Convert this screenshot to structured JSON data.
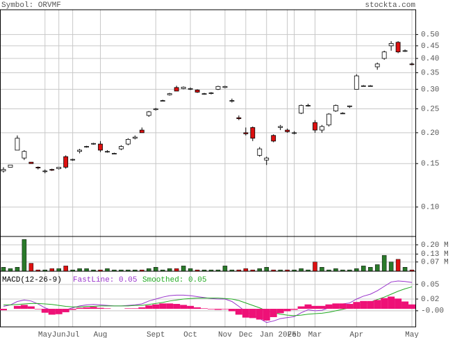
{
  "header": {
    "symbol": "Symbol: ORVMF",
    "site": "stockta.com"
  },
  "chart_data": [
    {
      "type": "candlestick",
      "log_scale": true,
      "grid": true,
      "up_color": "#ffffff",
      "down_color": "#dd1111",
      "ylim": [
        0.076,
        0.63
      ],
      "yticks": [
        {
          "value": 0.5,
          "label": "0.50"
        },
        0.45,
        {
          "value": 0.4,
          "label": "0.40"
        },
        0.35,
        {
          "value": 0.3,
          "label": "0.30"
        },
        0.25,
        {
          "value": 0.2,
          "label": "0.20"
        },
        0.15,
        {
          "value": 0.1,
          "label": "0.10"
        }
      ],
      "open": [
        0.14,
        0.145,
        0.17,
        0.158,
        0.152,
        0.145,
        0.14,
        0.142,
        0.143,
        0.16,
        0.155,
        0.168,
        0.175,
        0.18,
        0.18,
        0.168,
        0.165,
        0.172,
        0.18,
        0.19,
        0.205,
        0.235,
        0.248,
        0.27,
        0.285,
        0.305,
        0.302,
        0.3,
        0.298,
        0.288,
        0.29,
        0.3,
        0.305,
        0.27,
        0.23,
        0.2,
        0.21,
        0.162,
        0.155,
        0.195,
        0.21,
        0.205,
        0.2,
        0.24,
        0.258,
        0.22,
        0.205,
        0.215,
        0.245,
        0.24,
        0.255,
        0.3,
        0.31,
        0.31,
        0.37,
        0.4,
        0.45,
        0.465,
        0.43,
        0.38
      ],
      "high": [
        0.145,
        0.148,
        0.195,
        0.17,
        0.152,
        0.146,
        0.142,
        0.143,
        0.145,
        0.162,
        0.157,
        0.172,
        0.177,
        0.182,
        0.185,
        0.17,
        0.166,
        0.178,
        0.19,
        0.195,
        0.21,
        0.245,
        0.252,
        0.272,
        0.29,
        0.31,
        0.308,
        0.305,
        0.3,
        0.29,
        0.292,
        0.31,
        0.31,
        0.275,
        0.235,
        0.21,
        0.212,
        0.175,
        0.16,
        0.197,
        0.215,
        0.208,
        0.203,
        0.26,
        0.262,
        0.225,
        0.215,
        0.24,
        0.26,
        0.242,
        0.258,
        0.345,
        0.312,
        0.312,
        0.385,
        0.43,
        0.47,
        0.47,
        0.435,
        0.385
      ],
      "low": [
        0.138,
        0.145,
        0.17,
        0.155,
        0.15,
        0.142,
        0.137,
        0.14,
        0.142,
        0.143,
        0.154,
        0.165,
        0.174,
        0.179,
        0.167,
        0.166,
        0.164,
        0.17,
        0.178,
        0.188,
        0.2,
        0.232,
        0.246,
        0.268,
        0.283,
        0.295,
        0.3,
        0.298,
        0.29,
        0.285,
        0.286,
        0.298,
        0.303,
        0.265,
        0.225,
        0.195,
        0.185,
        0.16,
        0.148,
        0.183,
        0.205,
        0.2,
        0.197,
        0.238,
        0.255,
        0.2,
        0.2,
        0.212,
        0.243,
        0.238,
        0.252,
        0.3,
        0.309,
        0.309,
        0.36,
        0.395,
        0.43,
        0.42,
        0.425,
        0.375
      ],
      "close": [
        0.142,
        0.148,
        0.19,
        0.168,
        0.15,
        0.144,
        0.14,
        0.141,
        0.145,
        0.145,
        0.156,
        0.17,
        0.176,
        0.181,
        0.17,
        0.168,
        0.165,
        0.176,
        0.188,
        0.192,
        0.2,
        0.243,
        0.25,
        0.27,
        0.288,
        0.295,
        0.306,
        0.302,
        0.292,
        0.288,
        0.29,
        0.308,
        0.308,
        0.27,
        0.228,
        0.198,
        0.19,
        0.172,
        0.158,
        0.185,
        0.212,
        0.202,
        0.2,
        0.258,
        0.258,
        0.205,
        0.212,
        0.238,
        0.258,
        0.24,
        0.257,
        0.34,
        0.31,
        0.31,
        0.38,
        0.425,
        0.46,
        0.425,
        0.43,
        0.378
      ]
    },
    {
      "type": "bar",
      "grid": true,
      "up_color": "#2a7a2a",
      "down_color": "#dd1111",
      "ylim": [
        0,
        0.263
      ],
      "yticks": [
        {
          "value": 0.2,
          "label": "0.20 M"
        },
        {
          "value": 0.13,
          "label": "0.13 M"
        },
        {
          "value": 0.07,
          "label": "0.07 M"
        }
      ],
      "values": [
        0.03,
        0.02,
        0.03,
        0.24,
        0.06,
        0.01,
        0.01,
        0.02,
        0.02,
        0.04,
        0.01,
        0.02,
        0.02,
        0.01,
        0.01,
        0.02,
        0.01,
        0.01,
        0.01,
        0.01,
        0.01,
        0.02,
        0.03,
        0.01,
        0.02,
        0.02,
        0.04,
        0.02,
        0.01,
        0.01,
        0.01,
        0.01,
        0.04,
        0.01,
        0.01,
        0.02,
        0.01,
        0.02,
        0.03,
        0.01,
        0.01,
        0.01,
        0.01,
        0.02,
        0.01,
        0.07,
        0.03,
        0.01,
        0.02,
        0.01,
        0.01,
        0.02,
        0.04,
        0.03,
        0.05,
        0.12,
        0.07,
        0.09,
        0.03,
        0.01
      ]
    },
    {
      "type": "line",
      "title": "MACD(12-26-9)",
      "grid": true,
      "ylim": [
        -0.037,
        0.077
      ],
      "yticks": [
        {
          "value": 0.05,
          "label": "0.05"
        },
        {
          "value": 0.02,
          "label": "0.02"
        },
        {
          "value": -0.004,
          "label": "-0.00"
        }
      ],
      "categories": [
        null,
        null,
        null,
        null,
        null,
        null,
        "May",
        null,
        "Jun",
        null,
        "Jul",
        null,
        null,
        null,
        "Aug",
        null,
        null,
        null,
        null,
        null,
        null,
        null,
        "Sept",
        null,
        null,
        null,
        null,
        "Oct",
        null,
        null,
        null,
        null,
        "Nov",
        null,
        null,
        "Dec",
        null,
        null,
        "Jan",
        null,
        null,
        "2025",
        "Feb",
        null,
        null,
        "Mar",
        null,
        null,
        null,
        null,
        null,
        "Apr",
        null,
        null,
        null,
        null,
        null,
        null,
        null,
        "May"
      ],
      "series": [
        {
          "name": "FastLine: 0.05",
          "color": "#9933cc",
          "values": [
            0.005,
            0.008,
            0.015,
            0.018,
            0.016,
            0.01,
            0.002,
            -0.003,
            -0.004,
            -0.002,
            0.002,
            0.006,
            0.008,
            0.009,
            0.008,
            0.007,
            0.006,
            0.006,
            0.007,
            0.008,
            0.01,
            0.016,
            0.02,
            0.024,
            0.027,
            0.028,
            0.028,
            0.027,
            0.025,
            0.023,
            0.021,
            0.02,
            0.02,
            0.015,
            0.005,
            -0.006,
            -0.012,
            -0.02,
            -0.028,
            -0.025,
            -0.02,
            -0.018,
            -0.016,
            -0.008,
            -0.002,
            -0.004,
            -0.003,
            0.002,
            0.007,
            0.01,
            0.012,
            0.02,
            0.026,
            0.03,
            0.037,
            0.046,
            0.055,
            0.057,
            0.056,
            0.054
          ]
        },
        {
          "name": "Smoothed: 0.05",
          "color": "#22aa22",
          "values": [
            0.008,
            0.008,
            0.009,
            0.01,
            0.011,
            0.011,
            0.01,
            0.009,
            0.007,
            0.005,
            0.004,
            0.004,
            0.005,
            0.005,
            0.006,
            0.006,
            0.006,
            0.006,
            0.006,
            0.007,
            0.007,
            0.009,
            0.011,
            0.013,
            0.016,
            0.018,
            0.02,
            0.021,
            0.022,
            0.022,
            0.022,
            0.022,
            0.021,
            0.02,
            0.017,
            0.012,
            0.007,
            0.002,
            -0.004,
            -0.008,
            -0.011,
            -0.013,
            -0.014,
            -0.013,
            -0.011,
            -0.01,
            -0.009,
            -0.007,
            -0.004,
            -0.001,
            0.002,
            0.006,
            0.01,
            0.014,
            0.019,
            0.024,
            0.03,
            0.036,
            0.041,
            0.045
          ]
        },
        {
          "type": "bar",
          "color": "#ee1177",
          "values": [
            -0.003,
            0,
            0.006,
            0.008,
            0.005,
            -0.001,
            -0.008,
            -0.012,
            -0.011,
            -0.007,
            -0.002,
            0.002,
            0.003,
            0.004,
            0.002,
            0.001,
            0,
            0,
            0.001,
            0.001,
            0.003,
            0.007,
            0.009,
            0.011,
            0.011,
            0.01,
            0.008,
            0.006,
            0.003,
            0.001,
            -0.001,
            -0.002,
            -0.001,
            -0.005,
            -0.012,
            -0.018,
            -0.019,
            -0.022,
            -0.024,
            -0.017,
            -0.009,
            -0.005,
            -0.002,
            0.005,
            0.009,
            0.006,
            0.006,
            0.009,
            0.011,
            0.011,
            0.01,
            0.014,
            0.016,
            0.016,
            0.018,
            0.022,
            0.025,
            0.021,
            0.015,
            0.009
          ]
        }
      ]
    }
  ]
}
